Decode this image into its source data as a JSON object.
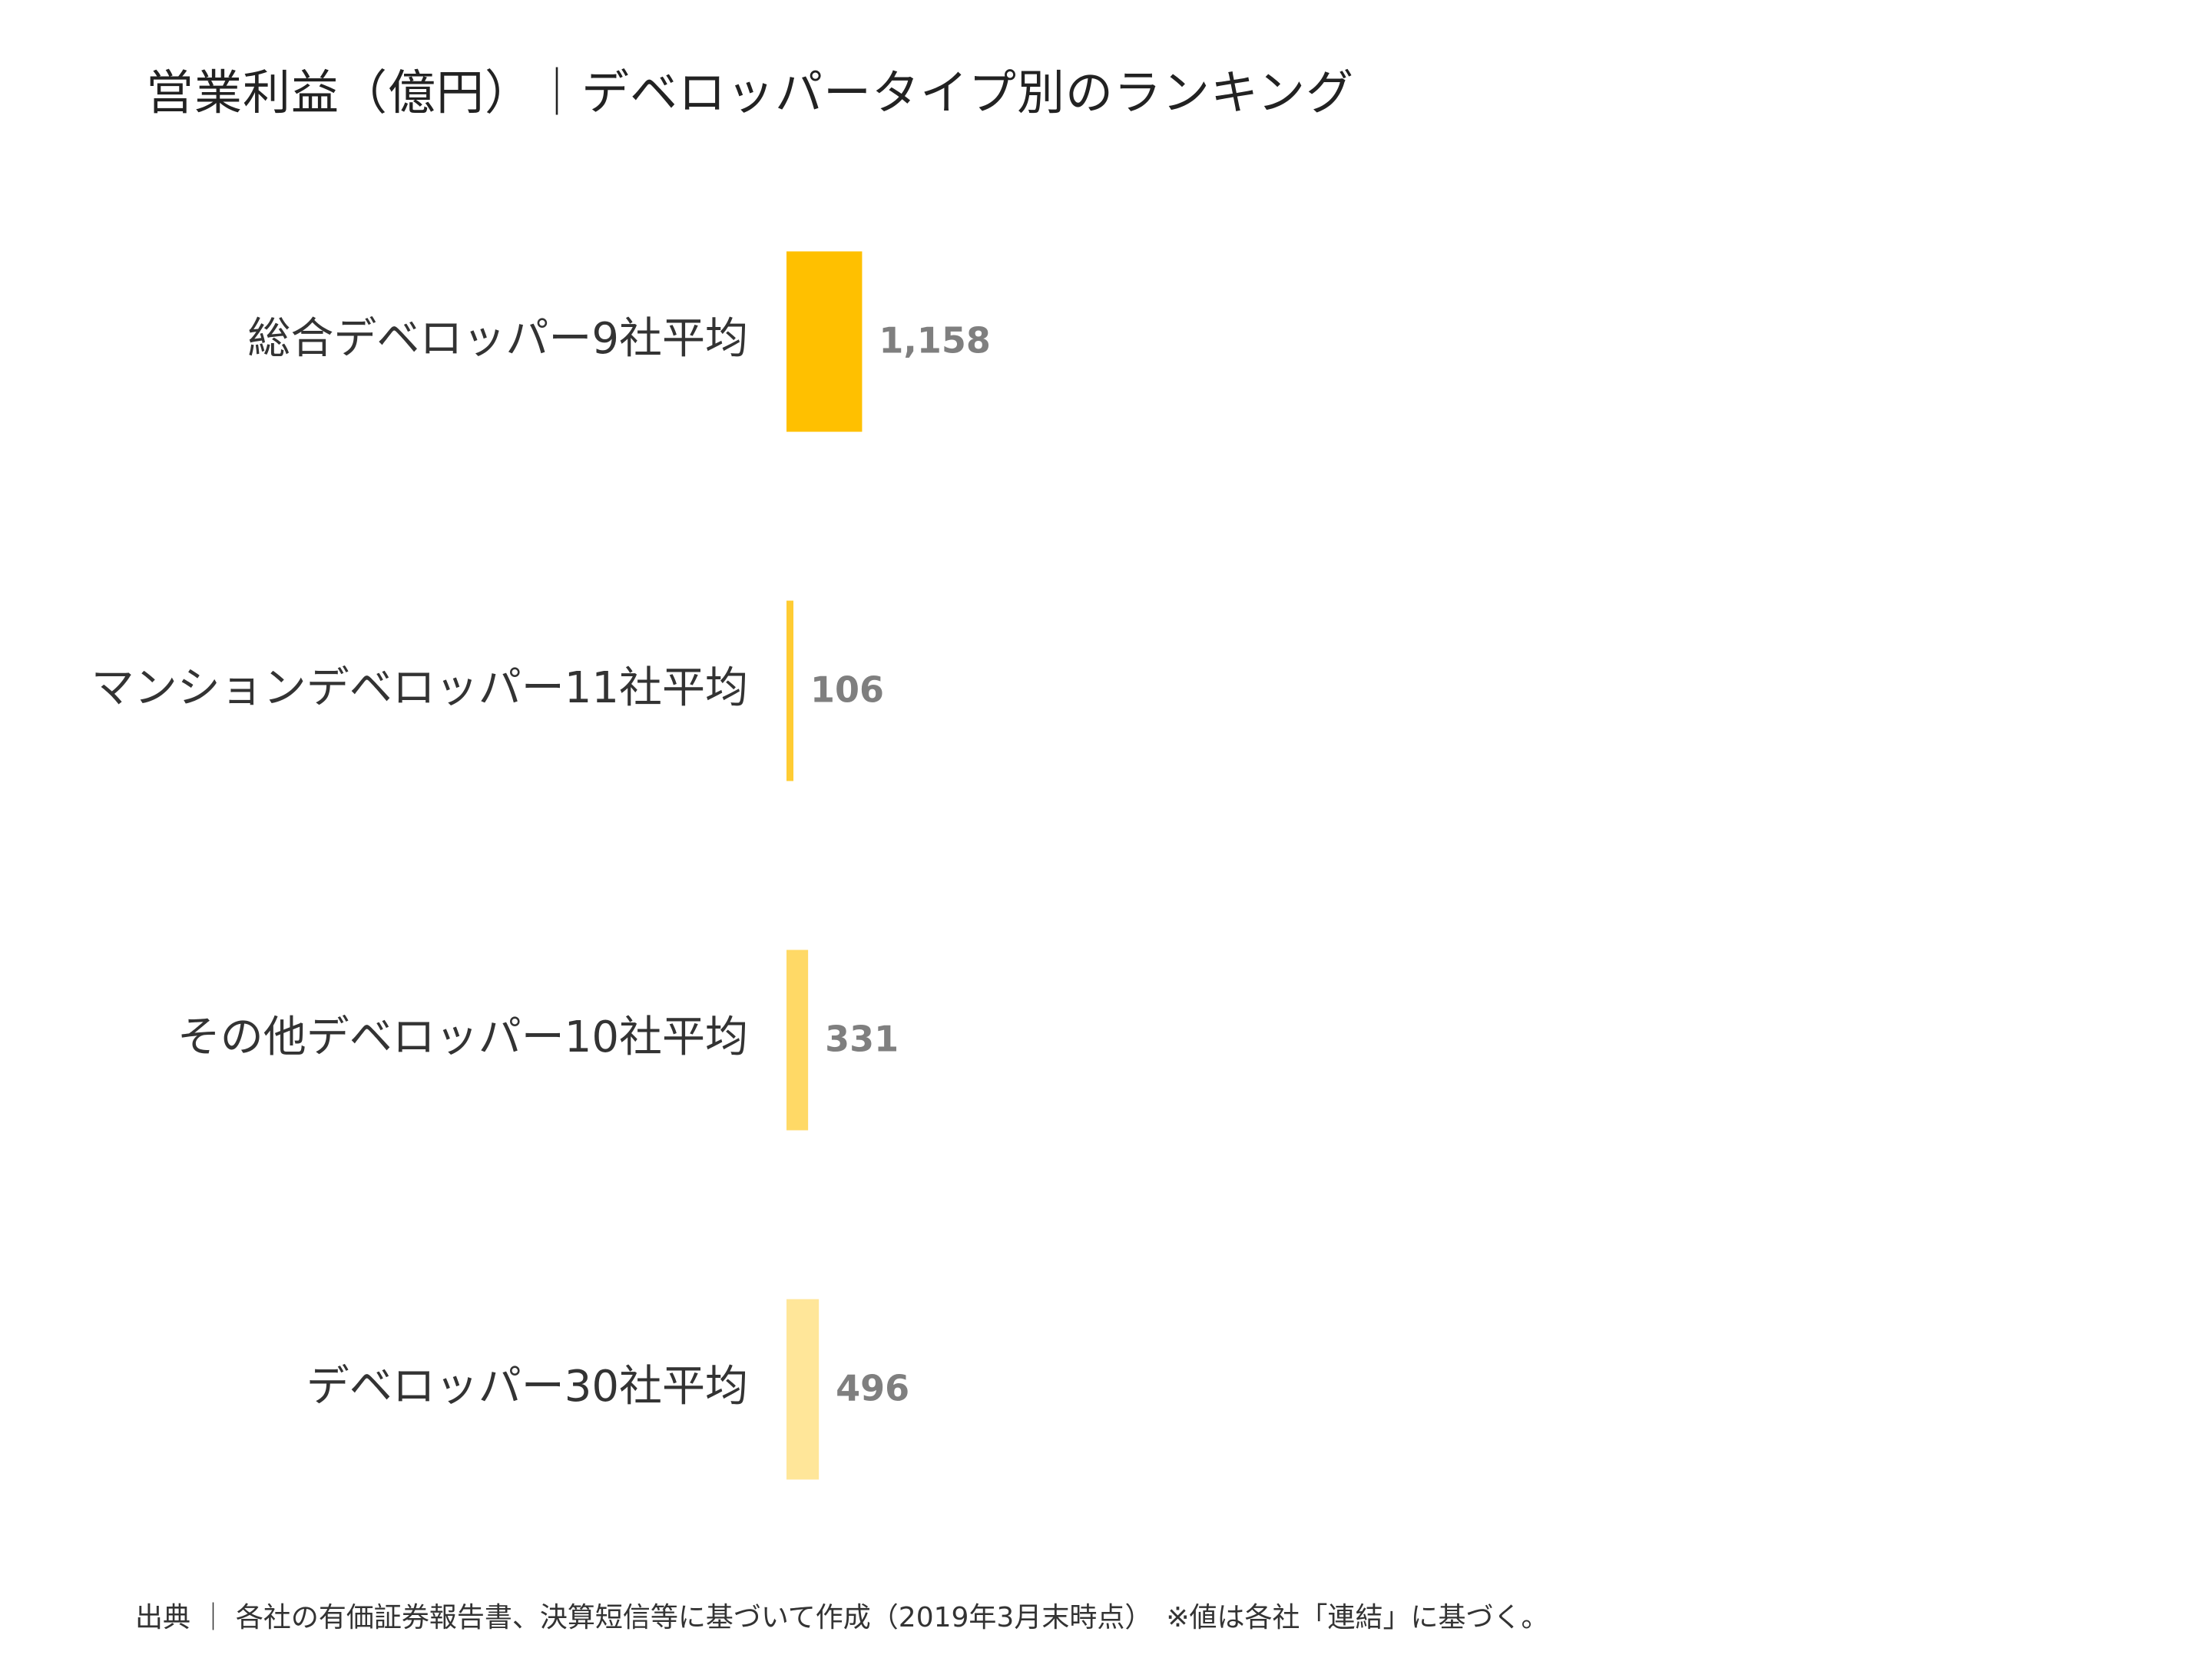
{
  "title": "営業利益（億円）｜デベロッパータイプ別のランキング",
  "source_note": "出典 ｜ 各社の有価証券報告書、決算短信等に基づいて作成（2019年3月末時点）　※値は各社「連結」に基づく。",
  "chart_data": {
    "type": "bar",
    "orientation": "horizontal",
    "title": "営業利益（億円）｜デベロッパータイプ別のランキング",
    "categories": [
      "総合デベロッパー9社平均",
      "マンションデベロッパー11社平均",
      "その他デベロッパー10社平均",
      "デベロッパー30社平均"
    ],
    "values": [
      1158,
      106,
      331,
      496
    ],
    "value_labels": [
      "1,158",
      "106",
      "331",
      "496"
    ],
    "colors": [
      "#FFC000",
      "#FFCC33",
      "#FFD966",
      "#FFE699"
    ],
    "xlim": [
      0,
      23000
    ],
    "grid": false,
    "legend": "none"
  }
}
